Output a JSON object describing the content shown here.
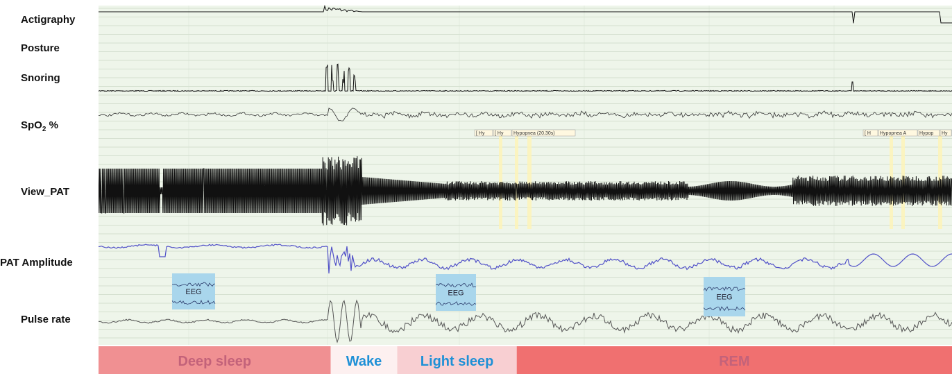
{
  "channels": [
    {
      "key": "actigraphy",
      "label": "Actigraphy"
    },
    {
      "key": "posture",
      "label": "Posture"
    },
    {
      "key": "snoring",
      "label": "Snoring"
    },
    {
      "key": "spo2",
      "label": "SpO",
      "sub": "2",
      "suffix": " %"
    },
    {
      "key": "view_pat",
      "label": "View_PAT"
    },
    {
      "key": "pat_amplitude",
      "label": "PAT Amplitude"
    },
    {
      "key": "pulse_rate",
      "label": "Pulse rate"
    }
  ],
  "eeg_insets": [
    {
      "label": "EEG",
      "stage": "Deep sleep"
    },
    {
      "label": "EEG",
      "stage": "Light sleep"
    },
    {
      "label": "EEG",
      "stage": "REM"
    }
  ],
  "event_markers": {
    "group1": [
      "[ Hy",
      "[ Hy",
      "Hypopnea (20.30s)"
    ],
    "group2": [
      "[ H",
      "Hypopnea A",
      "Hypop",
      "Hy",
      "Hy"
    ]
  },
  "chart_data": {
    "type": "line",
    "title": "",
    "xlabel": "",
    "ylabel": "",
    "hypnogram": [
      {
        "stage": "Deep sleep",
        "start": 0.0,
        "end": 0.272,
        "color": "#f09092",
        "text_color": "#c3627a"
      },
      {
        "stage": "Wake",
        "start": 0.272,
        "end": 0.35,
        "color": "#fdf0f0",
        "text_color": "#1e90d6"
      },
      {
        "stage": "Light sleep",
        "start": 0.35,
        "end": 0.49,
        "color": "#f8cfd2",
        "text_color": "#1e90d6"
      },
      {
        "stage": "REM",
        "start": 0.49,
        "end": 1.0,
        "color": "#f07070",
        "text_color": "#c3627a"
      }
    ],
    "colors": {
      "grid_bg": "#eef5ea",
      "grid_line": "#b9c9b4",
      "trace": "#111111",
      "pat_amplitude": "#5050c8",
      "pulse_rate": "#555555",
      "eeg_inset": "#a9d6ec",
      "event_marker": "#fdf3b8"
    },
    "grid": true
  }
}
